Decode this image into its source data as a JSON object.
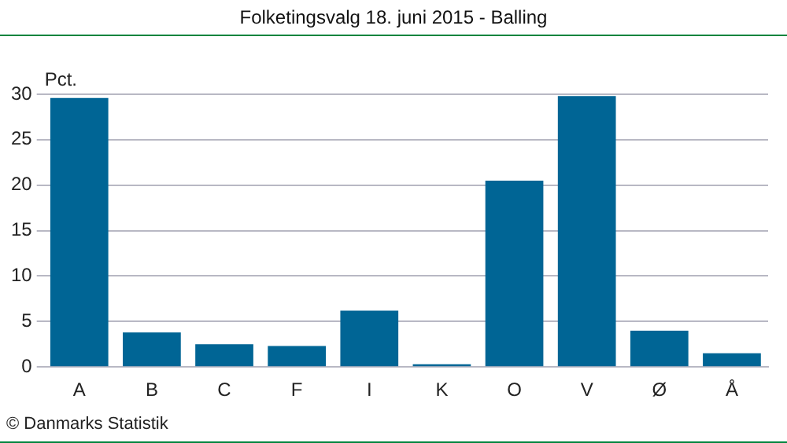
{
  "chart_data": {
    "type": "bar",
    "title": "Folketingsvalg 18. juni 2015 - Balling",
    "ylabel": "Pct.",
    "categories": [
      "A",
      "B",
      "C",
      "F",
      "I",
      "K",
      "O",
      "V",
      "Ø",
      "Å"
    ],
    "values": [
      29.6,
      3.8,
      2.5,
      2.3,
      6.2,
      0.3,
      20.5,
      29.8,
      4.0,
      1.5
    ],
    "color": "#006595",
    "ylim": [
      0,
      30
    ],
    "yticks": [
      0,
      5,
      10,
      15,
      20,
      25,
      30
    ],
    "grid": "y",
    "legend": false,
    "annotations": [
      "© Danmarks Statistik"
    ]
  }
}
